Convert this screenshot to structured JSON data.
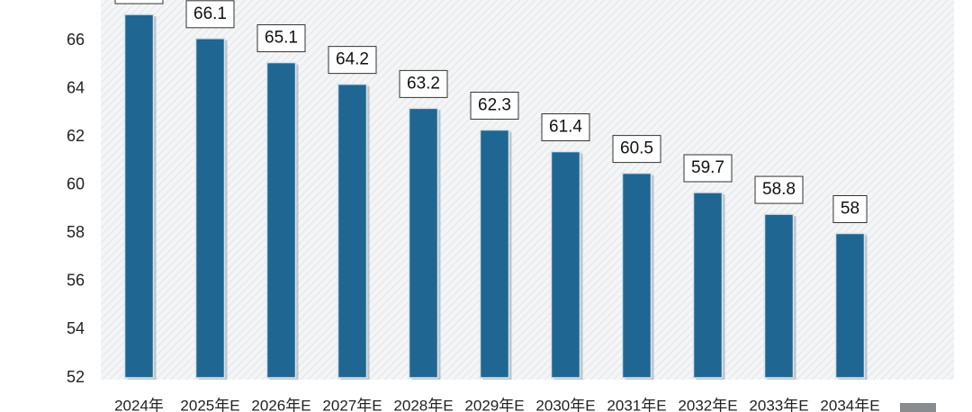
{
  "chart_data": {
    "type": "bar",
    "categories": [
      "2024年",
      "2025年E",
      "2026年E",
      "2027年E",
      "2028年E",
      "2029年E",
      "2030年E",
      "2031年E",
      "2032年E",
      "2033年E",
      "2034年E"
    ],
    "values": [
      67.1,
      66.1,
      65.1,
      64.2,
      63.2,
      62.3,
      61.4,
      60.5,
      59.7,
      58.8,
      58
    ],
    "color": "#1f6792",
    "ylim": [
      52,
      67.7
    ],
    "yticks": [
      52,
      54,
      56,
      58,
      60,
      62,
      64,
      66
    ]
  }
}
